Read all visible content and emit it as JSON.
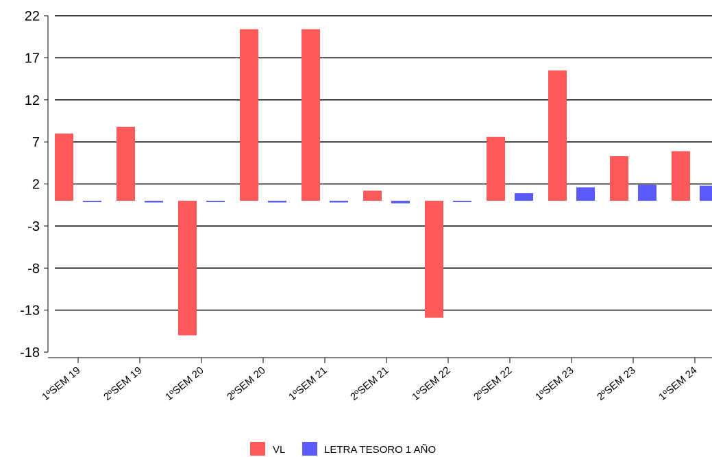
{
  "chart_data": {
    "type": "bar",
    "title": "",
    "xlabel": "",
    "ylabel": "",
    "categories": [
      "1ºSEM 19",
      "2ºSEM 19",
      "1ºSEM 20",
      "2ºSEM 20",
      "1ºSEM 21",
      "2ºSEM 21",
      "1ºSEM 22",
      "2ºSEM 22",
      "1ºSEM 23",
      "2ºSEM 23",
      "1ºSEM 24"
    ],
    "series": [
      {
        "name": "VL",
        "color": "#ff5a5a",
        "values": [
          8.0,
          8.8,
          -16.0,
          20.4,
          20.4,
          1.2,
          -13.9,
          7.6,
          15.5,
          5.3,
          5.9
        ]
      },
      {
        "name": "LETRA TESORO 1 AÑO",
        "color": "#5a5aff",
        "values": [
          -0.1,
          -0.2,
          -0.1,
          -0.2,
          -0.2,
          -0.3,
          -0.05,
          0.9,
          1.6,
          1.9,
          1.8
        ]
      }
    ],
    "ylim": [
      -18,
      22
    ],
    "yticks": [
      22,
      17,
      12,
      7,
      2,
      -3,
      -8,
      -13,
      -18
    ],
    "grid": true,
    "legend": "bottom"
  }
}
